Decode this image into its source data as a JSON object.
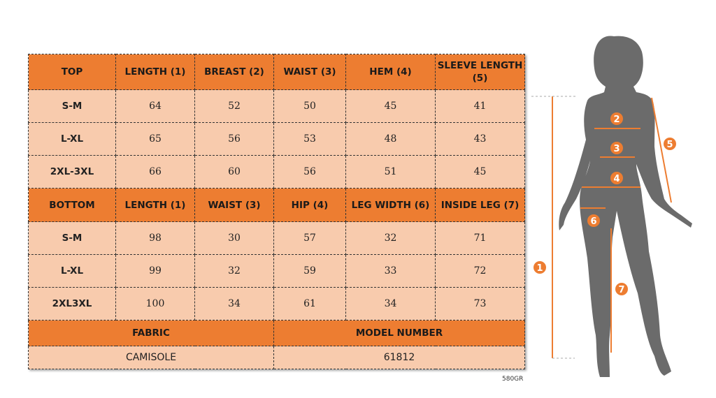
{
  "top": {
    "headers": [
      "TOP",
      "LENGTH (1)",
      "BREAST (2)",
      "WAIST (3)",
      "HEM (4)",
      "SLEEVE LENGTH (5)"
    ],
    "rows": [
      [
        "S-M",
        "64",
        "52",
        "50",
        "45",
        "41"
      ],
      [
        "L-XL",
        "65",
        "56",
        "53",
        "48",
        "43"
      ],
      [
        "2XL-3XL",
        "66",
        "60",
        "56",
        "51",
        "45"
      ]
    ]
  },
  "bottom": {
    "headers": [
      "BOTTOM",
      "LENGTH (1)",
      "WAIST (3)",
      "HIP (4)",
      "LEG WIDTH (6)",
      "INSIDE LEG (7)"
    ],
    "rows": [
      [
        "S-M",
        "98",
        "30",
        "57",
        "32",
        "71"
      ],
      [
        "L-XL",
        "99",
        "32",
        "59",
        "33",
        "72"
      ],
      [
        "2XL3XL",
        "100",
        "34",
        "61",
        "34",
        "73"
      ]
    ]
  },
  "info": {
    "fabric_label": "FABRIC",
    "fabric_value": "CAMISOLE",
    "model_label": "MODEL NUMBER",
    "model_value": "61812"
  },
  "code": "580GR",
  "figure": {
    "markers": [
      "1",
      "2",
      "3",
      "4",
      "5",
      "6",
      "7"
    ],
    "accent": "#ED7D31",
    "silhouette": "#6b6b6b"
  },
  "colors": {
    "header": "#ED7D31",
    "cell": "#F8CBAD"
  }
}
